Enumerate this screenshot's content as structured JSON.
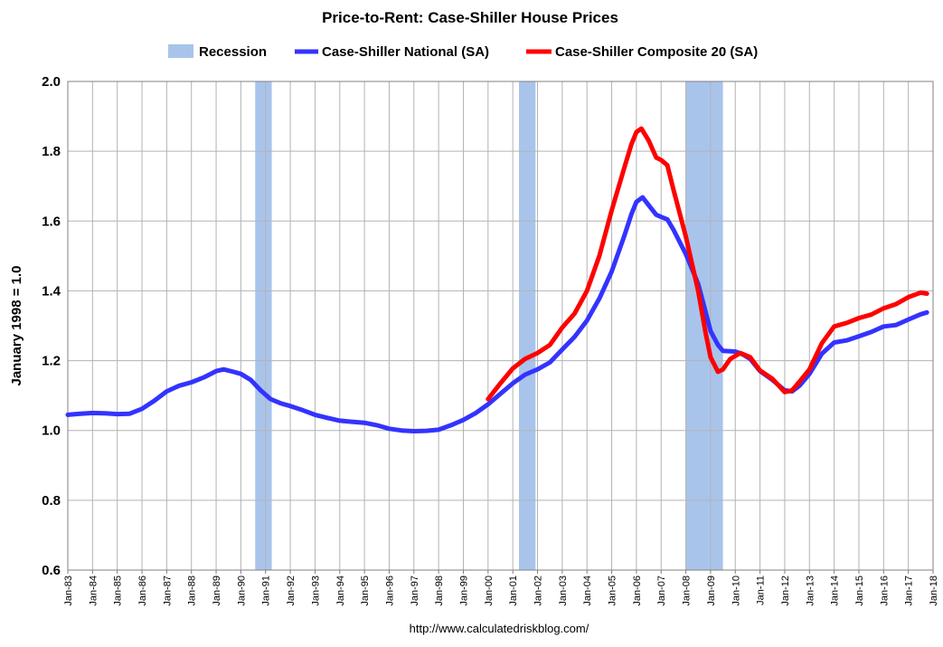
{
  "chart_data": {
    "type": "line",
    "title": "Price-to-Rent: Case-Shiller House Prices",
    "ylabel": "January 1998 = 1.0",
    "xlabel": "",
    "ylim": [
      0.6,
      2.0
    ],
    "xlim": [
      1983.0,
      2018.0
    ],
    "yticks": [
      "2.0",
      "1.8",
      "1.6",
      "1.4",
      "1.2",
      "1.0",
      "0.8",
      "0.6"
    ],
    "xticks": [
      "Jan-83",
      "Jan-84",
      "Jan-85",
      "Jan-86",
      "Jan-87",
      "Jan-88",
      "Jan-89",
      "Jan-90",
      "Jan-91",
      "Jan-92",
      "Jan-93",
      "Jan-94",
      "Jan-95",
      "Jan-96",
      "Jan-97",
      "Jan-98",
      "Jan-99",
      "Jan-00",
      "Jan-01",
      "Jan-02",
      "Jan-03",
      "Jan-04",
      "Jan-05",
      "Jan-06",
      "Jan-07",
      "Jan-08",
      "Jan-09",
      "Jan-10",
      "Jan-11",
      "Jan-12",
      "Jan-13",
      "Jan-14",
      "Jan-15",
      "Jan-16",
      "Jan-17",
      "Jan-18"
    ],
    "grid": true,
    "legend_position": "top",
    "source": "http://www.calculatedriskblog.com/",
    "recessions": [
      {
        "start": 1990.58,
        "end": 1991.25
      },
      {
        "start": 2001.25,
        "end": 2001.92
      },
      {
        "start": 2008.0,
        "end": 2009.5
      }
    ],
    "legend": {
      "recession": "Recession",
      "national": "Case-Shiller National (SA)",
      "composite": "Case-Shiller Composite 20 (SA)"
    },
    "colors": {
      "recession": "#a9c4eb",
      "national": "#3333ff",
      "composite": "#ff0000",
      "grid": "#b3b3b3"
    },
    "series": [
      {
        "name": "Case-Shiller National (SA)",
        "color": "#3333ff",
        "points": [
          [
            1983.0,
            1.045
          ],
          [
            1983.5,
            1.048
          ],
          [
            1984.0,
            1.05
          ],
          [
            1984.5,
            1.049
          ],
          [
            1985.0,
            1.047
          ],
          [
            1985.5,
            1.048
          ],
          [
            1986.0,
            1.062
          ],
          [
            1986.5,
            1.085
          ],
          [
            1987.0,
            1.112
          ],
          [
            1987.5,
            1.128
          ],
          [
            1988.0,
            1.138
          ],
          [
            1988.5,
            1.152
          ],
          [
            1989.0,
            1.17
          ],
          [
            1989.3,
            1.175
          ],
          [
            1989.7,
            1.168
          ],
          [
            1990.0,
            1.162
          ],
          [
            1990.4,
            1.145
          ],
          [
            1990.8,
            1.115
          ],
          [
            1991.2,
            1.09
          ],
          [
            1991.6,
            1.078
          ],
          [
            1992.0,
            1.07
          ],
          [
            1992.5,
            1.058
          ],
          [
            1993.0,
            1.045
          ],
          [
            1993.5,
            1.036
          ],
          [
            1994.0,
            1.028
          ],
          [
            1994.5,
            1.025
          ],
          [
            1995.0,
            1.022
          ],
          [
            1995.5,
            1.015
          ],
          [
            1996.0,
            1.005
          ],
          [
            1996.5,
            1.0
          ],
          [
            1997.0,
            0.998
          ],
          [
            1997.5,
            0.999
          ],
          [
            1998.0,
            1.002
          ],
          [
            1998.5,
            1.015
          ],
          [
            1999.0,
            1.03
          ],
          [
            1999.5,
            1.05
          ],
          [
            2000.0,
            1.075
          ],
          [
            2000.5,
            1.105
          ],
          [
            2001.0,
            1.135
          ],
          [
            2001.5,
            1.16
          ],
          [
            2002.0,
            1.175
          ],
          [
            2002.5,
            1.195
          ],
          [
            2003.0,
            1.232
          ],
          [
            2003.5,
            1.268
          ],
          [
            2004.0,
            1.315
          ],
          [
            2004.5,
            1.378
          ],
          [
            2005.0,
            1.455
          ],
          [
            2005.5,
            1.555
          ],
          [
            2005.8,
            1.62
          ],
          [
            2006.0,
            1.655
          ],
          [
            2006.25,
            1.668
          ],
          [
            2006.5,
            1.645
          ],
          [
            2006.8,
            1.618
          ],
          [
            2007.0,
            1.612
          ],
          [
            2007.25,
            1.605
          ],
          [
            2007.5,
            1.575
          ],
          [
            2008.0,
            1.505
          ],
          [
            2008.5,
            1.42
          ],
          [
            2008.8,
            1.34
          ],
          [
            2009.0,
            1.285
          ],
          [
            2009.3,
            1.245
          ],
          [
            2009.5,
            1.228
          ],
          [
            2010.0,
            1.226
          ],
          [
            2010.3,
            1.218
          ],
          [
            2010.6,
            1.205
          ],
          [
            2011.0,
            1.17
          ],
          [
            2011.5,
            1.145
          ],
          [
            2012.0,
            1.115
          ],
          [
            2012.3,
            1.112
          ],
          [
            2012.6,
            1.128
          ],
          [
            2013.0,
            1.162
          ],
          [
            2013.5,
            1.22
          ],
          [
            2014.0,
            1.252
          ],
          [
            2014.5,
            1.258
          ],
          [
            2015.0,
            1.27
          ],
          [
            2015.5,
            1.282
          ],
          [
            2016.0,
            1.298
          ],
          [
            2016.5,
            1.302
          ],
          [
            2017.0,
            1.318
          ],
          [
            2017.5,
            1.333
          ],
          [
            2017.75,
            1.338
          ]
        ]
      },
      {
        "name": "Case-Shiller Composite 20 (SA)",
        "color": "#ff0000",
        "points": [
          [
            2000.0,
            1.09
          ],
          [
            2000.5,
            1.135
          ],
          [
            2001.0,
            1.178
          ],
          [
            2001.5,
            1.205
          ],
          [
            2002.0,
            1.222
          ],
          [
            2002.5,
            1.245
          ],
          [
            2003.0,
            1.295
          ],
          [
            2003.5,
            1.335
          ],
          [
            2004.0,
            1.4
          ],
          [
            2004.5,
            1.5
          ],
          [
            2005.0,
            1.63
          ],
          [
            2005.5,
            1.75
          ],
          [
            2005.8,
            1.82
          ],
          [
            2006.0,
            1.855
          ],
          [
            2006.2,
            1.865
          ],
          [
            2006.5,
            1.83
          ],
          [
            2006.8,
            1.782
          ],
          [
            2007.0,
            1.775
          ],
          [
            2007.25,
            1.76
          ],
          [
            2007.5,
            1.69
          ],
          [
            2008.0,
            1.555
          ],
          [
            2008.5,
            1.4
          ],
          [
            2008.8,
            1.28
          ],
          [
            2009.0,
            1.21
          ],
          [
            2009.3,
            1.168
          ],
          [
            2009.5,
            1.175
          ],
          [
            2009.8,
            1.205
          ],
          [
            2010.2,
            1.222
          ],
          [
            2010.6,
            1.21
          ],
          [
            2011.0,
            1.172
          ],
          [
            2011.5,
            1.148
          ],
          [
            2012.0,
            1.11
          ],
          [
            2012.3,
            1.115
          ],
          [
            2012.6,
            1.14
          ],
          [
            2013.0,
            1.175
          ],
          [
            2013.5,
            1.25
          ],
          [
            2014.0,
            1.298
          ],
          [
            2014.5,
            1.308
          ],
          [
            2015.0,
            1.322
          ],
          [
            2015.5,
            1.332
          ],
          [
            2016.0,
            1.35
          ],
          [
            2016.5,
            1.362
          ],
          [
            2017.0,
            1.382
          ],
          [
            2017.5,
            1.395
          ],
          [
            2017.75,
            1.392
          ]
        ]
      }
    ]
  }
}
